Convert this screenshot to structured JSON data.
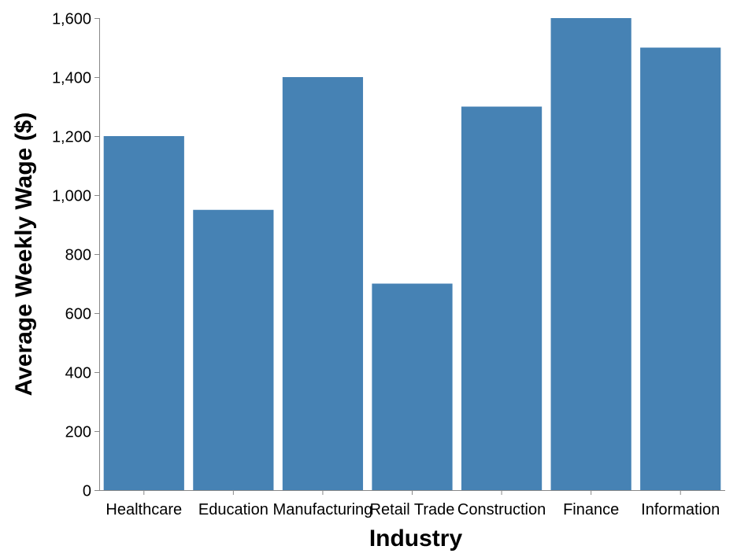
{
  "chart_data": {
    "type": "bar",
    "title": "",
    "xlabel": "Industry",
    "ylabel": "Average Weekly Wage ($)",
    "categories": [
      "Healthcare",
      "Education",
      "Manufacturing",
      "Retail Trade",
      "Construction",
      "Finance",
      "Information"
    ],
    "values": [
      1200,
      950,
      1400,
      700,
      1300,
      1600,
      1500
    ],
    "ylim": [
      0,
      1600
    ],
    "yticks": [
      0,
      200,
      400,
      600,
      800,
      1000,
      1200,
      1400,
      1600
    ],
    "ytick_labels": [
      "0",
      "200",
      "400",
      "600",
      "800",
      "1,000",
      "1,200",
      "1,400",
      "1,600"
    ],
    "bar_color": "#4682b4",
    "grid": false,
    "legend": "none"
  }
}
